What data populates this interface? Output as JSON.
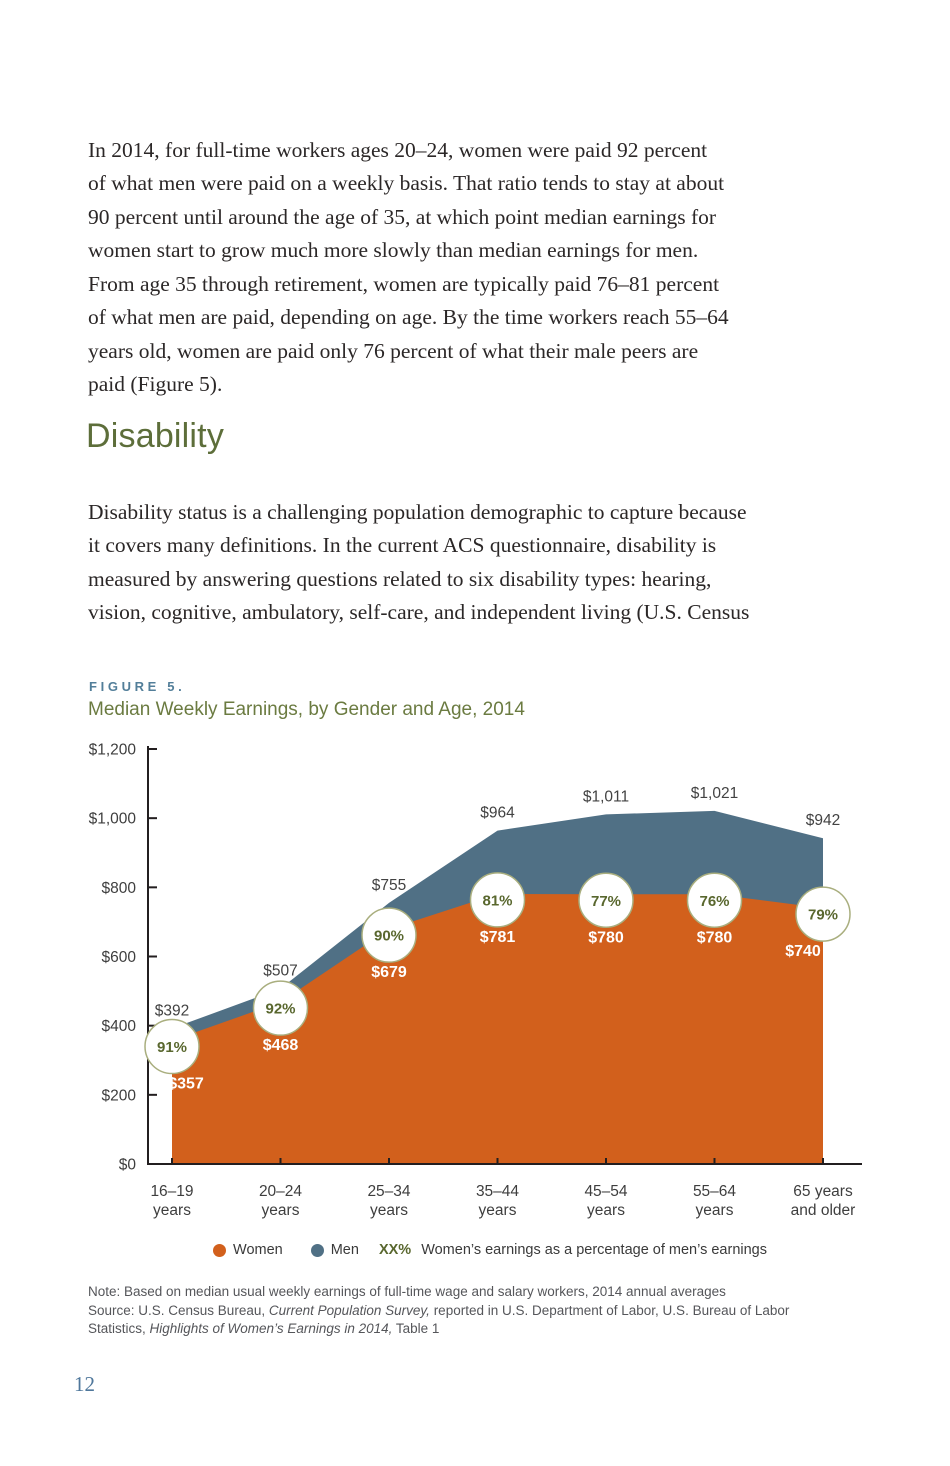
{
  "page": {
    "paragraph1": {
      "lines": [
        "In 2014, for full-time workers ages 20–24, women were paid 92 percent",
        "of what men were paid on a weekly basis. That ratio tends to stay at about",
        "90 percent until around the age of 35, at which point median earnings for",
        "women start to grow much more slowly than median earnings for men.",
        "From age 35 through retirement, women are typically paid 76–81 percent",
        "of what men are paid, depending on age. By the time workers reach 55–64",
        "years old, women are paid only 76 percent of what their male peers are",
        "paid (Figure 5)."
      ]
    },
    "heading": "Disability",
    "paragraph2": {
      "lines": [
        "Disability status is a challenging population demographic to capture because",
        "it covers many definitions. In the current ACS questionnaire, disability is",
        "measured by answering questions related to six disability types: hearing,",
        "vision, cognitive, ambulatory, self-care, and independent living (U.S. Census"
      ]
    },
    "figure": {
      "label": "FIGURE 5.",
      "title": "Median Weekly Earnings, by Gender and Age, 2014"
    },
    "note": {
      "line1": "Note: Based on median usual weekly earnings of full-time wage and salary workers, 2014 annual averages",
      "source_prefix": "Source: U.S. Census Bureau, ",
      "source_italic1": "Current Population Survey,",
      "source_mid": " reported in U.S. Department of Labor, U.S. Bureau of Labor",
      "source_line3_pre": "Statistics, ",
      "source_italic2": "Highlights of Women’s Earnings in 2014,",
      "source_suffix": " Table 1"
    },
    "page_number": "12"
  },
  "chart_data": {
    "type": "area",
    "title": "Median Weekly Earnings, by Gender and Age, 2014",
    "categories": [
      [
        "16–19",
        "years"
      ],
      [
        "20–24",
        "years"
      ],
      [
        "25–34",
        "years"
      ],
      [
        "35–44",
        "years"
      ],
      [
        "45–54",
        "years"
      ],
      [
        "55–64",
        "years"
      ],
      [
        "65 years",
        "and older"
      ]
    ],
    "series": [
      {
        "name": "Women",
        "color": "#d2601c",
        "values": [
          357,
          468,
          679,
          781,
          780,
          780,
          740
        ],
        "labels": [
          "$357",
          "$468",
          "$679",
          "$781",
          "$780",
          "$780",
          "$740"
        ]
      },
      {
        "name": "Men",
        "color": "#507085",
        "values": [
          392,
          507,
          755,
          964,
          1011,
          1021,
          942
        ],
        "labels": [
          "$392",
          "$507",
          "$755",
          "$964",
          "$1,011",
          "$1,021",
          "$942"
        ]
      }
    ],
    "ratio_labels": [
      "91%",
      "92%",
      "90%",
      "81%",
      "77%",
      "76%",
      "79%"
    ],
    "y_axis": {
      "min": 0,
      "max": 1200,
      "major_step": 200,
      "tick_labels": [
        "$0",
        "$200",
        "$400",
        "$600",
        "$800",
        "$1,000",
        "$1,200"
      ]
    },
    "grid": "off",
    "legend": {
      "women": "Women",
      "men": "Men",
      "ratio_key": "XX%",
      "ratio_text": "Women’s earnings as a percentage of men’s earnings"
    },
    "colors": {
      "women_area": "#d2601c",
      "men_area": "#507085",
      "axis": "#231f20",
      "axis_labels": "#3e3e3e",
      "men_value_labels": "#424242",
      "women_value_labels": "#ffffff",
      "ratio_text": "#59672e",
      "ratio_circle_fill": "#ffffff",
      "ratio_circle_stroke": "#a9ae7e"
    }
  }
}
